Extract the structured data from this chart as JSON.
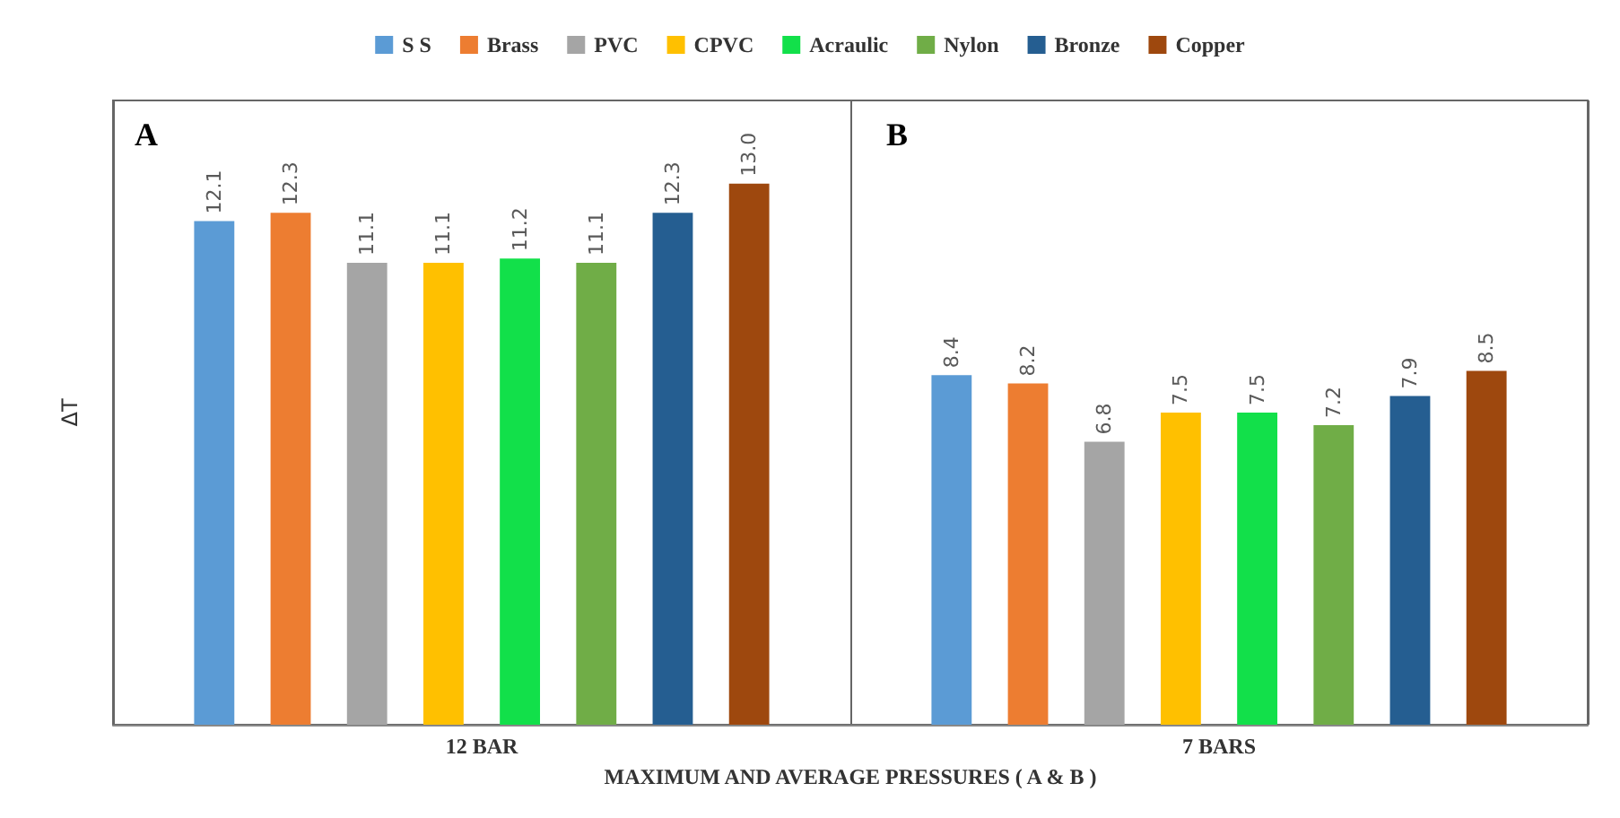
{
  "chart_data": {
    "type": "bar",
    "xlabel": "MAXIMUM AND AVERAGE PRESSURES ( A & B )",
    "ylabel": "ΔT",
    "categories": [
      "12 BAR",
      "7 BARS"
    ],
    "series": [
      {
        "name": "S S",
        "color": "#5b9bd5",
        "values": [
          12.1,
          8.4
        ],
        "value_labels": [
          "12.1",
          "8.4"
        ]
      },
      {
        "name": "Brass",
        "color": "#ed7d31",
        "values": [
          12.3,
          8.2
        ],
        "value_labels": [
          "12.3",
          "8.2"
        ]
      },
      {
        "name": "PVC",
        "color": "#a5a5a5",
        "values": [
          11.1,
          6.8
        ],
        "value_labels": [
          "11.1",
          "6.8"
        ]
      },
      {
        "name": "CPVC",
        "color": "#ffc000",
        "values": [
          11.1,
          7.5
        ],
        "value_labels": [
          "11.1",
          "7.5"
        ]
      },
      {
        "name": "Acraulic",
        "color": "#12e04a",
        "values": [
          11.2,
          7.5
        ],
        "value_labels": [
          "11.2",
          "7.5"
        ]
      },
      {
        "name": "Nylon",
        "color": "#70ad47",
        "values": [
          11.1,
          7.2
        ],
        "value_labels": [
          "11.1",
          "7.2"
        ]
      },
      {
        "name": "Bronze",
        "color": "#255e91",
        "values": [
          12.3,
          7.9
        ],
        "value_labels": [
          "12.3",
          "7.9"
        ]
      },
      {
        "name": "Copper",
        "color": "#9e480e",
        "values": [
          13,
          8.5
        ],
        "value_labels": [
          "13.0",
          "8.5"
        ]
      }
    ],
    "annotations": [
      "A",
      "B"
    ],
    "legend": "top"
  }
}
